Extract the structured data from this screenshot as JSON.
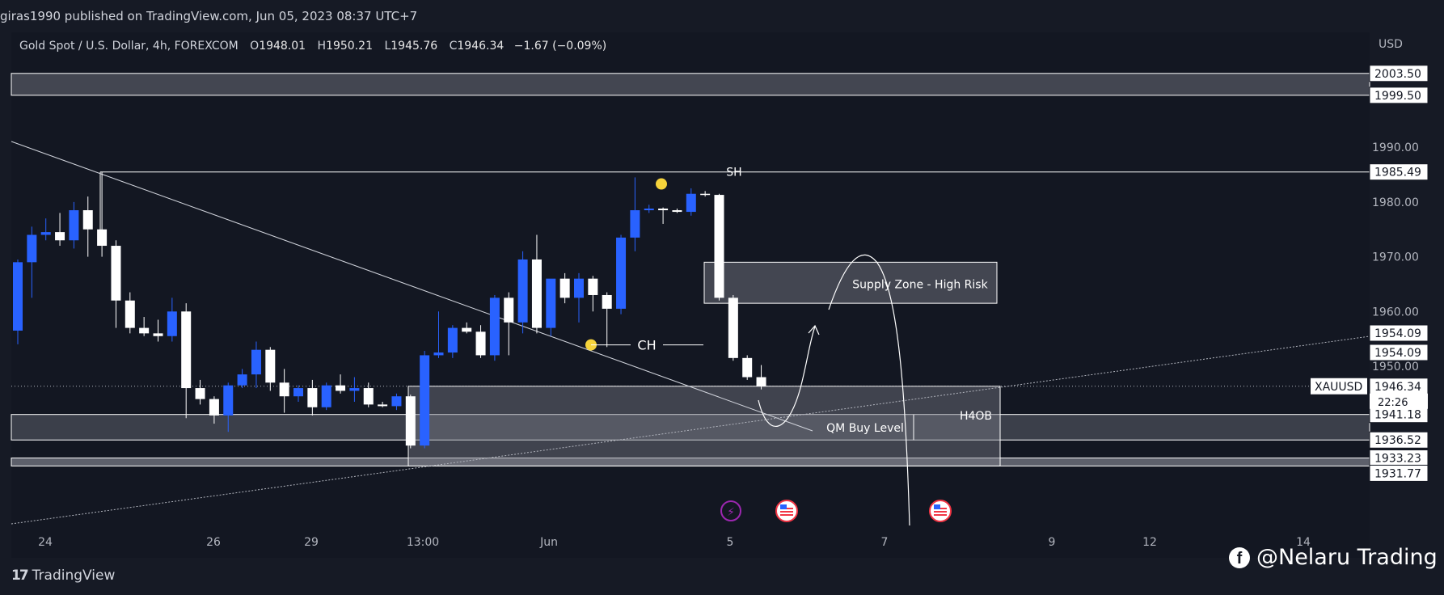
{
  "header": {
    "publish_line": "giras1990 published on TradingView.com, Jun 05, 2023 08:37 UTC+7"
  },
  "symbol": {
    "name": "Gold Spot / U.S. Dollar, 4h, FOREXCOM",
    "open_label": "O",
    "open": "1948.01",
    "high_label": "H",
    "high": "1950.21",
    "low_label": "L",
    "low": "1945.76",
    "close_label": "C",
    "close": "1946.34",
    "change": "−1.67 (−0.09%)"
  },
  "currency": "USD",
  "colors": {
    "background": "#131722",
    "bull": "#2962ff",
    "bear": "#ffffff",
    "zone_fill": "#4a4e58",
    "annotation": "#ffffff",
    "marker": "#f5d33b",
    "event_icon": "#9c27b0",
    "flag_ring": "#f23645"
  },
  "chart_data": {
    "type": "candlestick",
    "timeframe": "4h",
    "ylim": [
      1920.9,
      2011.0
    ],
    "x_axis_ticks": [
      "24",
      "26",
      "29",
      "13:00",
      "Jun",
      "5",
      "7",
      "9",
      "12",
      "14"
    ],
    "y_axis_ticks": [
      "1990.00",
      "1980.00",
      "1970.00",
      "1960.00",
      "1950.00"
    ],
    "price_tags": [
      "2003.50",
      "1999.50",
      "1985.49",
      "1954.09",
      "1954.09",
      "1946.34",
      "1941.18",
      "1936.52",
      "1933.23",
      "1931.77"
    ],
    "last_price_label": "XAUUSD",
    "countdown": "22:26",
    "candles": [
      {
        "o": 1956.5,
        "h": 1969.5,
        "l": 1954.0,
        "c": 1969.0
      },
      {
        "o": 1969.0,
        "h": 1975.5,
        "l": 1962.5,
        "c": 1974.0
      },
      {
        "o": 1974.0,
        "h": 1977.0,
        "l": 1973.0,
        "c": 1974.5
      },
      {
        "o": 1974.5,
        "h": 1978.0,
        "l": 1972.0,
        "c": 1973.0
      },
      {
        "o": 1973.0,
        "h": 1980.0,
        "l": 1971.5,
        "c": 1978.5
      },
      {
        "o": 1978.5,
        "h": 1981.0,
        "l": 1970.0,
        "c": 1975.0
      },
      {
        "o": 1975.0,
        "h": 1985.5,
        "l": 1970.0,
        "c": 1972.0
      },
      {
        "o": 1972.0,
        "h": 1973.0,
        "l": 1957.0,
        "c": 1962.0
      },
      {
        "o": 1962.0,
        "h": 1963.5,
        "l": 1956.0,
        "c": 1957.0
      },
      {
        "o": 1957.0,
        "h": 1959.0,
        "l": 1955.5,
        "c": 1956.0
      },
      {
        "o": 1956.0,
        "h": 1958.5,
        "l": 1954.5,
        "c": 1955.5
      },
      {
        "o": 1955.5,
        "h": 1962.5,
        "l": 1954.5,
        "c": 1960.0
      },
      {
        "o": 1960.0,
        "h": 1961.5,
        "l": 1940.5,
        "c": 1946.0
      },
      {
        "o": 1946.0,
        "h": 1947.5,
        "l": 1943.0,
        "c": 1944.0
      },
      {
        "o": 1944.0,
        "h": 1944.5,
        "l": 1939.5,
        "c": 1941.0
      },
      {
        "o": 1941.0,
        "h": 1947.0,
        "l": 1938.0,
        "c": 1946.5
      },
      {
        "o": 1946.5,
        "h": 1949.5,
        "l": 1946.0,
        "c": 1948.5
      },
      {
        "o": 1948.5,
        "h": 1954.5,
        "l": 1946.0,
        "c": 1953.0
      },
      {
        "o": 1953.0,
        "h": 1953.5,
        "l": 1945.5,
        "c": 1947.0
      },
      {
        "o": 1947.0,
        "h": 1949.5,
        "l": 1941.5,
        "c": 1944.5
      },
      {
        "o": 1944.5,
        "h": 1946.5,
        "l": 1943.5,
        "c": 1946.0
      },
      {
        "o": 1946.0,
        "h": 1947.5,
        "l": 1941.0,
        "c": 1942.5
      },
      {
        "o": 1942.5,
        "h": 1947.0,
        "l": 1942.0,
        "c": 1946.5
      },
      {
        "o": 1946.5,
        "h": 1948.5,
        "l": 1945.0,
        "c": 1945.5
      },
      {
        "o": 1945.5,
        "h": 1948.0,
        "l": 1943.5,
        "c": 1946.0
      },
      {
        "o": 1946.0,
        "h": 1947.0,
        "l": 1942.5,
        "c": 1943.0
      },
      {
        "o": 1943.0,
        "h": 1943.5,
        "l": 1942.5,
        "c": 1942.7
      },
      {
        "o": 1942.7,
        "h": 1945.0,
        "l": 1942.0,
        "c": 1944.5
      },
      {
        "o": 1944.5,
        "h": 1944.8,
        "l": 1935.0,
        "c": 1935.5
      },
      {
        "o": 1935.5,
        "h": 1952.8,
        "l": 1935.0,
        "c": 1952.0
      },
      {
        "o": 1952.0,
        "h": 1960.0,
        "l": 1951.5,
        "c": 1952.5
      },
      {
        "o": 1952.5,
        "h": 1957.5,
        "l": 1951.5,
        "c": 1957.0
      },
      {
        "o": 1957.0,
        "h": 1958.0,
        "l": 1956.0,
        "c": 1956.3
      },
      {
        "o": 1956.3,
        "h": 1957.5,
        "l": 1951.5,
        "c": 1952.0
      },
      {
        "o": 1952.0,
        "h": 1963.0,
        "l": 1951.0,
        "c": 1962.5
      },
      {
        "o": 1962.5,
        "h": 1963.5,
        "l": 1952.0,
        "c": 1958.0
      },
      {
        "o": 1958.0,
        "h": 1971.0,
        "l": 1956.0,
        "c": 1969.5
      },
      {
        "o": 1969.5,
        "h": 1974.0,
        "l": 1956.0,
        "c": 1957.0
      },
      {
        "o": 1957.0,
        "h": 1965.5,
        "l": 1955.5,
        "c": 1966.0
      },
      {
        "o": 1966.0,
        "h": 1967.0,
        "l": 1961.5,
        "c": 1962.5
      },
      {
        "o": 1962.5,
        "h": 1967.0,
        "l": 1958.0,
        "c": 1966.0
      },
      {
        "o": 1966.0,
        "h": 1966.5,
        "l": 1960.0,
        "c": 1963.0
      },
      {
        "o": 1963.0,
        "h": 1963.5,
        "l": 1953.5,
        "c": 1960.5
      },
      {
        "o": 1960.5,
        "h": 1974.0,
        "l": 1959.5,
        "c": 1973.5
      },
      {
        "o": 1973.5,
        "h": 1984.5,
        "l": 1971.0,
        "c": 1978.5
      },
      {
        "o": 1978.5,
        "h": 1979.5,
        "l": 1978.0,
        "c": 1978.8
      },
      {
        "o": 1978.8,
        "h": 1979.0,
        "l": 1976.0,
        "c": 1978.5
      },
      {
        "o": 1978.5,
        "h": 1978.8,
        "l": 1978.0,
        "c": 1978.2
      },
      {
        "o": 1978.2,
        "h": 1982.5,
        "l": 1977.5,
        "c": 1981.5
      },
      {
        "o": 1981.5,
        "h": 1982.0,
        "l": 1981.0,
        "c": 1981.3
      },
      {
        "o": 1981.3,
        "h": 1981.5,
        "l": 1962.0,
        "c": 1962.5
      },
      {
        "o": 1962.5,
        "h": 1963.0,
        "l": 1951.0,
        "c": 1951.5
      },
      {
        "o": 1951.5,
        "h": 1952.0,
        "l": 1947.5,
        "c": 1948.0
      },
      {
        "o": 1948.0,
        "h": 1950.21,
        "l": 1945.76,
        "c": 1946.34
      }
    ]
  },
  "annotations": {
    "sh_label": "SH",
    "ch_label": "CH",
    "supply_zone_label": "Supply Zone - High Risk",
    "qm_label": "QM Buy Level",
    "h4ob_label": "H4OB"
  },
  "events": {
    "event_icon": "lightning-icon",
    "flag_icon": "us-flag-icon"
  },
  "footer": {
    "logo_text": "TradingView",
    "logo_mark": "17"
  },
  "watermark": {
    "icon": "facebook-icon",
    "text": "@Nelaru Trading"
  }
}
